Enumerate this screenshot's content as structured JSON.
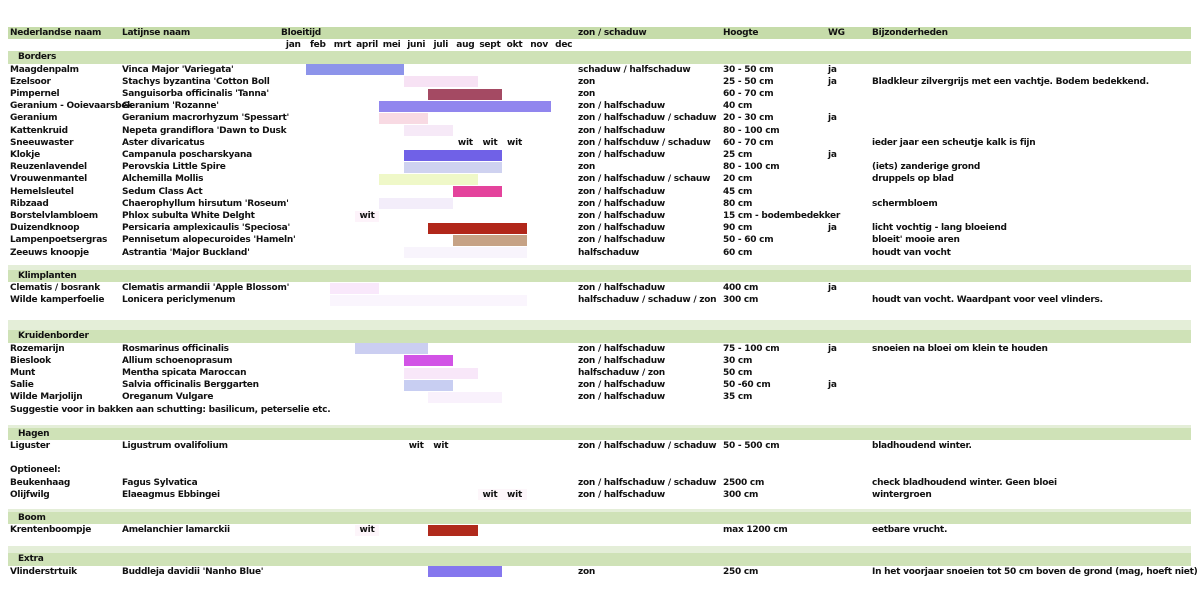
{
  "labels": {
    "wit": "wit"
  },
  "header": {
    "nederlandse_naam": "Nederlandse naam",
    "latijnse_naam": "Latijnse naam",
    "bloeitijd": "Bloeitijd",
    "zon_schaduw": "zon / schaduw",
    "hoogte": "Hoogte",
    "wg": "WG",
    "bijzonderheden": "Bijzonderheden"
  },
  "months": [
    "jan",
    "feb",
    "mrt",
    "april",
    "mei",
    "juni",
    "juli",
    "aug",
    "sept",
    "okt",
    "nov",
    "dec"
  ],
  "colors": {
    "header_band": "#c6dcaa",
    "section_band": "#cfe2b7",
    "pre_band": "#e4eed8"
  },
  "sections": [
    {
      "title": "Borders",
      "gap_before": 0,
      "strip_before": 0,
      "rows": [
        {
          "type": "plant",
          "nl": "Maagdenpalm",
          "latin": "Vinca Major 'Variegata'",
          "bars": [
            {
              "start": 2,
              "end": 5,
              "color": "#8d94ea"
            }
          ],
          "wit": [],
          "sun": "schaduw / halfschaduw",
          "hoogte": "30 - 50 cm",
          "wg": "ja",
          "notes": ""
        },
        {
          "type": "plant",
          "nl": "Ezelsoor",
          "latin": "Stachys byzantina 'Cotton Boll",
          "bars": [
            {
              "start": 6,
              "end": 8,
              "color": "#f7e2f4"
            }
          ],
          "wit": [],
          "sun": "zon",
          "hoogte": "25 - 50 cm",
          "wg": "ja",
          "notes": "Bladkleur zilvergrijs met een vachtje. Bodem bedekkend."
        },
        {
          "type": "plant",
          "nl": "Pimpernel",
          "latin": "Sanguisorba officinalis 'Tanna'",
          "bars": [
            {
              "start": 7,
              "end": 9,
              "color": "#a44a63"
            }
          ],
          "wit": [],
          "sun": "zon",
          "hoogte": "60 - 70 cm",
          "wg": "",
          "notes": ""
        },
        {
          "type": "plant",
          "nl": "Geranium - Ooievaarsbek",
          "latin": "Geranium 'Rozanne'",
          "bars": [
            {
              "start": 5,
              "end": 11,
              "color": "#9186ee"
            }
          ],
          "wit": [],
          "sun": "zon / halfschaduw",
          "hoogte": "40 cm",
          "wg": "",
          "notes": ""
        },
        {
          "type": "plant",
          "nl": "Geranium",
          "latin": "Geranium macrorhyzum 'Spessart'",
          "bars": [
            {
              "start": 5,
              "end": 6,
              "color": "#f8dae3"
            }
          ],
          "wit": [],
          "sun": "zon / halfschaduw / schaduw",
          "hoogte": "20 - 30 cm",
          "wg": "ja",
          "notes": ""
        },
        {
          "type": "plant",
          "nl": "Kattenkruid",
          "latin": "Nepeta grandiflora 'Dawn to Dusk",
          "bars": [
            {
              "start": 6,
              "end": 7,
              "color": "#f6e9f7"
            }
          ],
          "wit": [],
          "sun": "zon / halfschaduw",
          "hoogte": "80 - 100 cm",
          "wg": "",
          "notes": ""
        },
        {
          "type": "plant",
          "nl": "Sneeuwaster",
          "latin": "Aster divaricatus",
          "bars": [],
          "wit": [
            8,
            9,
            10
          ],
          "sun": "zon / halfschduw / schaduw",
          "hoogte": "60 - 70 cm",
          "wg": "",
          "notes": "ieder jaar een scheutje kalk is fijn"
        },
        {
          "type": "plant",
          "nl": "Klokje",
          "latin": "Campanula poscharskyana",
          "bars": [
            {
              "start": 6,
              "end": 9,
              "color": "#7061e7"
            }
          ],
          "wit": [],
          "sun": "zon / halfschaduw",
          "hoogte": "25 cm",
          "wg": "ja",
          "notes": ""
        },
        {
          "type": "plant",
          "nl": "Reuzenlavendel",
          "latin": "Perovskia Little Spire",
          "bars": [
            {
              "start": 6,
              "end": 9,
              "color": "#cfd2f0"
            }
          ],
          "wit": [],
          "sun": "zon",
          "hoogte": "80 - 100 cm",
          "wg": "",
          "notes": "(iets) zanderige grond"
        },
        {
          "type": "plant",
          "nl": "Vrouwenmantel",
          "latin": "Alchemilla Mollis",
          "bars": [
            {
              "start": 5,
              "end": 8,
              "color": "#eff8c8"
            }
          ],
          "wit": [],
          "sun": "zon / halfschaduw / schauw",
          "hoogte": "20 cm",
          "wg": "",
          "notes": "druppels op blad"
        },
        {
          "type": "plant",
          "nl": "Hemelsleutel",
          "latin": "Sedum Class Act",
          "bars": [
            {
              "start": 8,
              "end": 9,
              "color": "#e4439c"
            }
          ],
          "wit": [],
          "sun": "zon / halfschaduw",
          "hoogte": "45 cm",
          "wg": "",
          "notes": ""
        },
        {
          "type": "plant",
          "nl": "Ribzaad",
          "latin": "Chaerophyllum hirsutum 'Roseum'",
          "bars": [
            {
              "start": 5,
              "end": 7,
              "color": "#f3edfa"
            }
          ],
          "wit": [],
          "sun": "zon / halfschaduw",
          "hoogte": "80 cm",
          "wg": "",
          "notes": "schermbloem"
        },
        {
          "type": "plant",
          "nl": "Borstelvlambloem",
          "latin": "Phlox subulta White Delght",
          "bars": [
            {
              "start": 4,
              "end": 4,
              "color": "#fdf3fa"
            }
          ],
          "wit": [
            4
          ],
          "sun": "zon / halfschaduw",
          "hoogte": "15 cm - bodembedekker",
          "wg": "",
          "notes": ""
        },
        {
          "type": "plant",
          "nl": "Duizendknoop",
          "latin": "Persicaria amplexicaulis 'Speciosa'",
          "bars": [
            {
              "start": 7,
              "end": 10,
              "color": "#b1271a"
            }
          ],
          "wit": [],
          "sun": "zon / halfschaduw",
          "hoogte": "90 cm",
          "wg": "ja",
          "notes": "licht vochtig - lang bloeiend"
        },
        {
          "type": "plant",
          "nl": "Lampenpoetsergras",
          "latin": "Pennisetum alopecuroides 'Hameln'",
          "bars": [
            {
              "start": 8,
              "end": 10,
              "color": "#c6a285"
            }
          ],
          "wit": [],
          "sun": "zon / halfschaduw",
          "hoogte": "50 - 60 cm",
          "wg": "",
          "notes": "bloeit' mooie aren"
        },
        {
          "type": "plant",
          "nl": "Zeeuws knoopje",
          "latin": "Astrantia 'Major Buckland'",
          "bars": [
            {
              "start": 6,
              "end": 10,
              "color": "#f8f4fc"
            }
          ],
          "wit": [],
          "sun": "halfschaduw",
          "hoogte": "60 cm",
          "wg": "",
          "notes": "houdt van vocht"
        }
      ]
    },
    {
      "title": "Klimplanten",
      "gap_before": 6,
      "strip_before": 5,
      "rows": [
        {
          "type": "plant",
          "nl": "Clematis / bosrank",
          "latin": "Clematis armandii 'Apple Blossom'",
          "bars": [
            {
              "start": 3,
              "end": 4,
              "color": "#f9e8fb"
            }
          ],
          "wit": [],
          "sun": "zon / halfschaduw",
          "hoogte": "400 cm",
          "wg": "ja",
          "notes": ""
        },
        {
          "type": "plant",
          "nl": "Wilde kamperfoelie",
          "latin": "Lonicera periclymenum",
          "bars": [
            {
              "start": 3,
              "end": 10,
              "color": "#faf5fd"
            }
          ],
          "wit": [],
          "sun": "halfschaduw / schaduw / zon",
          "hoogte": "300 cm",
          "wg": "",
          "notes": "houdt van vocht. Waardpant voor veel vlinders."
        }
      ]
    },
    {
      "title": "Kruidenborder",
      "gap_before": 14,
      "strip_before": 10,
      "rows": [
        {
          "type": "plant",
          "nl": "Rozemarijn",
          "latin": "Rosmarinus officinalis",
          "bars": [
            {
              "start": 4,
              "end": 6,
              "color": "#cbcef1"
            }
          ],
          "wit": [],
          "sun": "zon / halfschaduw",
          "hoogte": "75 - 100 cm",
          "wg": "ja",
          "notes": "snoeien na bloei om klein te houden"
        },
        {
          "type": "plant",
          "nl": "Bieslook",
          "latin": "Allium schoenoprasum",
          "bars": [
            {
              "start": 6,
              "end": 7,
              "color": "#d253e6"
            }
          ],
          "wit": [],
          "sun": "zon / halfschaduw",
          "hoogte": "30 cm",
          "wg": "",
          "notes": ""
        },
        {
          "type": "plant",
          "nl": "Munt",
          "latin": "Mentha spicata Maroccan",
          "bars": [
            {
              "start": 6,
              "end": 8,
              "color": "#f8e7f9"
            }
          ],
          "wit": [],
          "sun": "halfschaduw / zon",
          "hoogte": "50 cm",
          "wg": "",
          "notes": ""
        },
        {
          "type": "plant",
          "nl": "Salie",
          "latin": "Salvia officinalis Berggarten",
          "bars": [
            {
              "start": 6,
              "end": 7,
              "color": "#c8cef2"
            }
          ],
          "wit": [],
          "sun": "zon / halfschaduw",
          "hoogte": "50 -60 cm",
          "wg": "ja",
          "notes": ""
        },
        {
          "type": "plant",
          "nl": "Wilde Marjolijn",
          "latin": "Oreganum Vulgare",
          "bars": [
            {
              "start": 7,
              "end": 9,
              "color": "#f9f1fc"
            }
          ],
          "wit": [],
          "sun": "zon / halfschaduw",
          "hoogte": "35 cm",
          "wg": "",
          "notes": ""
        },
        {
          "type": "text",
          "text": "Suggestie voor in bakken aan schutting: basilicum, peterselie etc."
        }
      ]
    },
    {
      "title": "Hagen",
      "gap_before": 9,
      "strip_before": 3,
      "rows": [
        {
          "type": "plant",
          "nl": "Liguster",
          "latin": "Ligustrum ovalifolium",
          "bars": [],
          "wit": [
            6,
            7
          ],
          "sun": "zon / halfschaduw / schaduw",
          "hoogte": "50 - 500 cm",
          "wg": "",
          "notes": "bladhoudend winter."
        },
        {
          "type": "spacer"
        },
        {
          "type": "text",
          "text": "Optioneel:"
        },
        {
          "type": "plant",
          "nl": "Beukenhaag",
          "latin": "Fagus Sylvatica",
          "bars": [],
          "wit": [],
          "sun": "zon / halfschaduw / schaduw",
          "hoogte": "2500 cm",
          "wg": "",
          "notes": "check bladhoudend winter. Geen bloei"
        },
        {
          "type": "plant",
          "nl": "Olijfwilg",
          "latin": "Elaeagmus Ebbingei",
          "bars": [
            {
              "start": 9,
              "end": 10,
              "color": "#fdf6fa"
            }
          ],
          "wit": [
            9,
            10
          ],
          "sun": "zon / halfschaduw",
          "hoogte": "300 cm",
          "wg": "",
          "notes": "wintergroen"
        }
      ]
    },
    {
      "title": "Boom",
      "gap_before": 8,
      "strip_before": 3,
      "rows": [
        {
          "type": "plant",
          "nl": "Krentenboompje",
          "latin": "Amelanchier lamarckii",
          "bars": [
            {
              "start": 4,
              "end": 4,
              "color": "#fdf5fa"
            },
            {
              "start": 7,
              "end": 8,
              "color": "#b02a1c"
            }
          ],
          "wit": [
            4
          ],
          "sun": "",
          "hoogte": "max 1200 cm",
          "wg": "",
          "notes": "eetbare vrucht."
        }
      ]
    },
    {
      "title": "Extra",
      "gap_before": 10,
      "strip_before": 7,
      "rows": [
        {
          "type": "plant",
          "nl": "Vlinderstrtuik",
          "latin": "Buddleja davidii 'Nanho Blue'",
          "bars": [
            {
              "start": 7,
              "end": 9,
              "color": "#8577ee"
            }
          ],
          "wit": [],
          "sun": "zon",
          "hoogte": "250 cm",
          "wg": "",
          "notes": "In het voorjaar snoeien tot 50 cm boven de grond (mag, hoeft niet)"
        }
      ]
    }
  ]
}
